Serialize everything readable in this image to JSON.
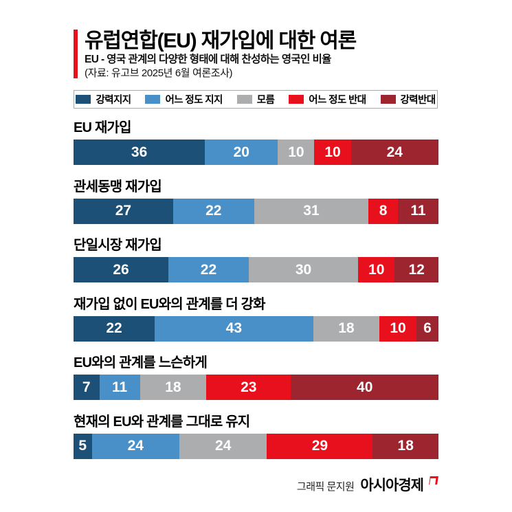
{
  "header": {
    "title": "유럽연합(EU) 재가입에 대한 여론",
    "subtitle": "EU - 영국 관계의 다양한 형태에 대해 찬성하는 영국인 비율",
    "source": "(자료: 유고브 2025년 6월 여론조사)"
  },
  "colors": {
    "accent": "#e8101c",
    "series": [
      "#1d5076",
      "#4a90c8",
      "#abadaf",
      "#e8101c",
      "#9c2530"
    ]
  },
  "legend": [
    {
      "label": "강력지지",
      "color": "#1d5076"
    },
    {
      "label": "어느 정도 지지",
      "color": "#4a90c8"
    },
    {
      "label": "모름",
      "color": "#abadaf"
    },
    {
      "label": "어느 정도 반대",
      "color": "#e8101c"
    },
    {
      "label": "강력반대",
      "color": "#9c2530"
    }
  ],
  "rows": [
    {
      "label": "EU 재가입",
      "values": [
        36,
        20,
        10,
        10,
        24
      ]
    },
    {
      "label": "관세동맹 재가입",
      "values": [
        27,
        22,
        31,
        8,
        11
      ]
    },
    {
      "label": "단일시장 재가입",
      "values": [
        26,
        22,
        30,
        10,
        12
      ]
    },
    {
      "label": "재가입 없이 EU와의 관계를 더 강화",
      "values": [
        22,
        43,
        18,
        10,
        6
      ]
    },
    {
      "label": "EU와의 관계를 느슨하게",
      "values": [
        7,
        11,
        18,
        23,
        40
      ]
    },
    {
      "label": "현재의 EU와 관계를 그대로 유지",
      "values": [
        5,
        24,
        24,
        29,
        18
      ]
    }
  ],
  "footer": {
    "credit": "그래픽 문지원",
    "brand": "아시아경제"
  },
  "chart_data": {
    "type": "bar",
    "orientation": "horizontal-stacked",
    "title": "유럽연합(EU) 재가입에 대한 여론",
    "subtitle": "EU - 영국 관계의 다양한 형태에 대해 찬성하는 영국인 비율",
    "source": "(자료: 유고브 2025년 6월 여론조사)",
    "unit": "%",
    "categories": [
      "EU 재가입",
      "관세동맹 재가입",
      "단일시장 재가입",
      "재가입 없이 EU와의 관계를 더 강화",
      "EU와의 관계를 느슨하게",
      "현재의 EU와 관계를 그대로 유지"
    ],
    "series": [
      {
        "name": "강력지지",
        "color": "#1d5076",
        "values": [
          36,
          27,
          26,
          22,
          7,
          5
        ]
      },
      {
        "name": "어느 정도 지지",
        "color": "#4a90c8",
        "values": [
          20,
          22,
          22,
          43,
          11,
          24
        ]
      },
      {
        "name": "모름",
        "color": "#abadaf",
        "values": [
          10,
          31,
          30,
          18,
          18,
          24
        ]
      },
      {
        "name": "어느 정도 반대",
        "color": "#e8101c",
        "values": [
          10,
          8,
          10,
          10,
          23,
          29
        ]
      },
      {
        "name": "강력반대",
        "color": "#9c2530",
        "values": [
          24,
          11,
          12,
          6,
          40,
          18
        ]
      }
    ],
    "xlim": [
      0,
      100
    ],
    "grid": false,
    "legend_position": "top",
    "data_labels": "inside-white"
  }
}
